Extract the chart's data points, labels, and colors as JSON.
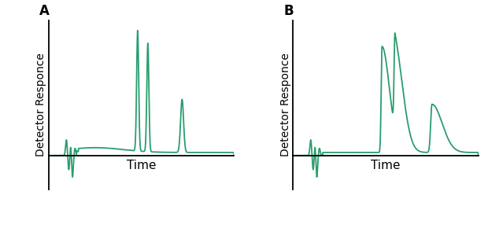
{
  "line_color": "#2a9d6e",
  "line_width": 1.3,
  "background_color": "#ffffff",
  "label_A": "A",
  "label_B": "B",
  "xlabel": "Time",
  "ylabel": "Detector Responce",
  "xlabel_fontsize": 11,
  "ylabel_fontsize": 10,
  "panel_label_fontsize": 12
}
